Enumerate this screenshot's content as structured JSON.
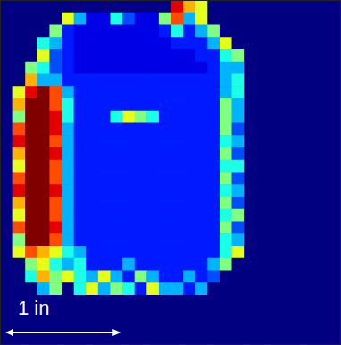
{
  "chart_data": {
    "type": "heatmap",
    "xlim": [
      0,
      28
    ],
    "ylim": [
      0,
      28
    ],
    "tick_labels": false,
    "color_range": [
      0,
      10
    ],
    "scale_bar": {
      "label": "1 in",
      "length": 9.5
    },
    "cells": [
      [
        0,
        0,
        0,
        0,
        0,
        0,
        0,
        0,
        0,
        0,
        0,
        0,
        0,
        0,
        9,
        7,
        6,
        0,
        0,
        0,
        0,
        0,
        0,
        0,
        0,
        0,
        0,
        0
      ],
      [
        0,
        0,
        0,
        0,
        0,
        6,
        3,
        1,
        1,
        4,
        2,
        1,
        1,
        5,
        8,
        3,
        6,
        0,
        0,
        0,
        0,
        0,
        0,
        0,
        0,
        0,
        0,
        0
      ],
      [
        0,
        0,
        0,
        0,
        5,
        1.5,
        1,
        1,
        1,
        1,
        1,
        1,
        1,
        1.5,
        4,
        1.5,
        3,
        5,
        0,
        0,
        0,
        0,
        0,
        0,
        0,
        0,
        0,
        0
      ],
      [
        0,
        0,
        0,
        4,
        3,
        1.5,
        1,
        1,
        1,
        1,
        1,
        1,
        1,
        1,
        1.5,
        1.5,
        1.5,
        3,
        6,
        0,
        0,
        0,
        0,
        0,
        0,
        0,
        0,
        0
      ],
      [
        0,
        0,
        0,
        6,
        2,
        1.5,
        1,
        1,
        1,
        1,
        1,
        1,
        1,
        1,
        1,
        1,
        1.5,
        1.5,
        4,
        5,
        0,
        0,
        0,
        0,
        0,
        0,
        0,
        0
      ],
      [
        0,
        0,
        5,
        4,
        2,
        1.5,
        1,
        1,
        1,
        1,
        1,
        1,
        1,
        1,
        1,
        1,
        1,
        1.5,
        3,
        3,
        0,
        0,
        0,
        0,
        0,
        0,
        0,
        0
      ],
      [
        0,
        0,
        7,
        3,
        3,
        1.5,
        1.5,
        1.5,
        1.5,
        1.5,
        1.5,
        1.5,
        1.5,
        1.5,
        1.5,
        1.5,
        1.5,
        1.5,
        3,
        4,
        0,
        0,
        0,
        0,
        0,
        0,
        0,
        0
      ],
      [
        0,
        6,
        9,
        10,
        8,
        3,
        1.5,
        1.5,
        1.5,
        1.5,
        1.5,
        1.5,
        1.5,
        1.5,
        1.5,
        1.5,
        1.5,
        1.5,
        3,
        4,
        0,
        0,
        0,
        0,
        0,
        0,
        0,
        0
      ],
      [
        0,
        7,
        10,
        10,
        8,
        4,
        1.5,
        1.5,
        1.5,
        1.5,
        1.5,
        1.5,
        1.5,
        1.5,
        1.5,
        1.5,
        1.5,
        1.5,
        5,
        3,
        0,
        0,
        0,
        0,
        0,
        0,
        0,
        0
      ],
      [
        0,
        5,
        10,
        10,
        9,
        4,
        1.5,
        1.5,
        1.5,
        4,
        6,
        5,
        4,
        1.5,
        1.5,
        1.5,
        1.5,
        1.5,
        5,
        3,
        0,
        0,
        0,
        0,
        0,
        0,
        0,
        0
      ],
      [
        0,
        8,
        10,
        10,
        9,
        3,
        1.5,
        1.5,
        1.5,
        1.5,
        1.5,
        1.5,
        1.5,
        1.5,
        1.5,
        1.5,
        1.5,
        1.5,
        5,
        2,
        0,
        0,
        0,
        0,
        0,
        0,
        0,
        0
      ],
      [
        0,
        9,
        10,
        10,
        8,
        3,
        1.5,
        1.5,
        1.5,
        1.5,
        1.5,
        1.5,
        1.5,
        1.5,
        1.5,
        1.5,
        1.5,
        1.5,
        4,
        3,
        0,
        0,
        0,
        0,
        0,
        0,
        0,
        0
      ],
      [
        0,
        7,
        10,
        10,
        9,
        3,
        1.5,
        1.5,
        1.5,
        1.5,
        1.5,
        1.5,
        1.5,
        1.5,
        1.5,
        1.5,
        1.5,
        1.5,
        5,
        2,
        0,
        0,
        0,
        0,
        0,
        0,
        0,
        0
      ],
      [
        0,
        6,
        10,
        10,
        8,
        3,
        1.5,
        1.5,
        1.5,
        1.5,
        1.5,
        1.5,
        1.5,
        1.5,
        1.5,
        1.5,
        1.5,
        1.5,
        4,
        4,
        0,
        0,
        0,
        0,
        0,
        0,
        0,
        0
      ],
      [
        0,
        8,
        10,
        10,
        8,
        3,
        1.5,
        1.5,
        1.5,
        1.5,
        1.5,
        1.5,
        1.5,
        1.5,
        1.5,
        1.5,
        1.5,
        1.5,
        5,
        2,
        0,
        0,
        0,
        0,
        0,
        0,
        0,
        0
      ],
      [
        0,
        9,
        10,
        10,
        9,
        3,
        1.5,
        1.5,
        1.5,
        1.5,
        1.5,
        1.5,
        1.5,
        1.5,
        1.5,
        1.5,
        1.5,
        1.5,
        4,
        3,
        0,
        0,
        0,
        0,
        0,
        0,
        0,
        0
      ],
      [
        0,
        7,
        10,
        10,
        8,
        3,
        1.5,
        1.5,
        1.5,
        1.5,
        1.5,
        1.5,
        1.5,
        1.5,
        1.5,
        1.5,
        1.5,
        1.5,
        5,
        2,
        0,
        0,
        0,
        0,
        0,
        0,
        0,
        0
      ],
      [
        0,
        6,
        10,
        10,
        8,
        3,
        1.5,
        1.5,
        1.5,
        1.5,
        1.5,
        1.5,
        1.5,
        1.5,
        1.5,
        1.5,
        1.5,
        1.5,
        4,
        5,
        0,
        0,
        0,
        0,
        0,
        0,
        0,
        0
      ],
      [
        0,
        8,
        10,
        10,
        9,
        3,
        1.5,
        1.5,
        1.5,
        1.5,
        1.5,
        1.5,
        1.5,
        1.5,
        1.5,
        1.5,
        1.5,
        1.5,
        5,
        2,
        0,
        0,
        0,
        0,
        0,
        0,
        0,
        0
      ],
      [
        0,
        5,
        10,
        10,
        8,
        3,
        1.5,
        1.5,
        1.5,
        1.5,
        1.5,
        1.5,
        1.5,
        1.5,
        1.5,
        1.5,
        1.5,
        1.5,
        4,
        3,
        0,
        0,
        0,
        0,
        0,
        0,
        0,
        0
      ],
      [
        0,
        6,
        8,
        7,
        6,
        4,
        3,
        1.5,
        1.5,
        1.5,
        1.5,
        1.5,
        1.5,
        1.5,
        1.5,
        1.5,
        1.5,
        1.5,
        4,
        6,
        0,
        0,
        0,
        0,
        0,
        0,
        0,
        0
      ],
      [
        0,
        0,
        5,
        6,
        4,
        3,
        4,
        1.5,
        1.5,
        1.5,
        3,
        1.5,
        1.5,
        1.5,
        1.5,
        1.5,
        1.5,
        3,
        5,
        0,
        0,
        0,
        0,
        0,
        0,
        0,
        0,
        0
      ],
      [
        0,
        0,
        4,
        7,
        5,
        6,
        4,
        3,
        6,
        3,
        1.5,
        5,
        3,
        1.5,
        1.5,
        3,
        1.5,
        2,
        0,
        0,
        0,
        0,
        0,
        0,
        0,
        0,
        0,
        0
      ],
      [
        0,
        0,
        0,
        3,
        5,
        0,
        4,
        6,
        3,
        5,
        4,
        1.5,
        6,
        3,
        3,
        1.5,
        3,
        0,
        0,
        0,
        0,
        0,
        0,
        0,
        0,
        0,
        0,
        0
      ],
      [
        0,
        0,
        0,
        0,
        0,
        0,
        0,
        0,
        0,
        0,
        0,
        0,
        0,
        0,
        0,
        0,
        0,
        0,
        0,
        0,
        0,
        0,
        0,
        0,
        0,
        0,
        0,
        0
      ],
      [
        0,
        0,
        0,
        0,
        0,
        0,
        0,
        0,
        0,
        0,
        0,
        0,
        0,
        0,
        0,
        0,
        0,
        0,
        0,
        0,
        0,
        0,
        0,
        0,
        0,
        0,
        0,
        0
      ],
      [
        0,
        0,
        0,
        0,
        0,
        0,
        0,
        0,
        0,
        0,
        0,
        0,
        0,
        0,
        0,
        0,
        0,
        0,
        0,
        0,
        0,
        0,
        0,
        0,
        0,
        0,
        0,
        0
      ],
      [
        0,
        0,
        0,
        0,
        0,
        0,
        0,
        0,
        0,
        0,
        0,
        0,
        0,
        0,
        0,
        0,
        0,
        0,
        0,
        0,
        0,
        0,
        0,
        0,
        0,
        0,
        0,
        0
      ]
    ]
  }
}
